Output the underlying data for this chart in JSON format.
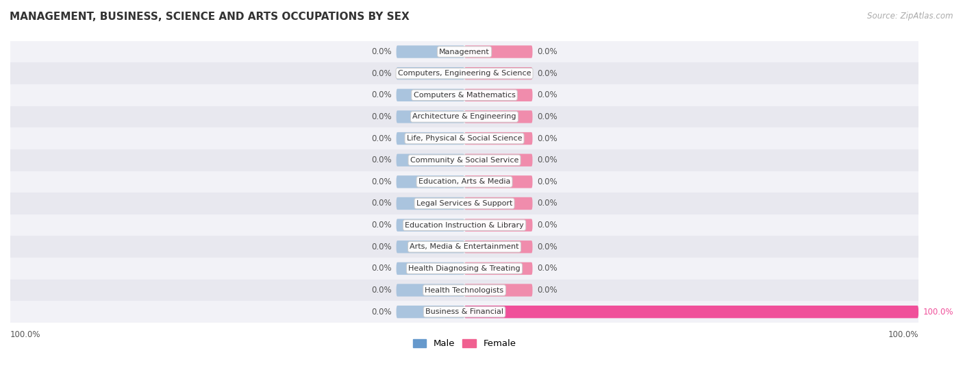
{
  "title": "MANAGEMENT, BUSINESS, SCIENCE AND ARTS OCCUPATIONS BY SEX",
  "source": "Source: ZipAtlas.com",
  "categories": [
    "Management",
    "Computers, Engineering & Science",
    "Computers & Mathematics",
    "Architecture & Engineering",
    "Life, Physical & Social Science",
    "Community & Social Service",
    "Education, Arts & Media",
    "Legal Services & Support",
    "Education Instruction & Library",
    "Arts, Media & Entertainment",
    "Health Diagnosing & Treating",
    "Health Technologists",
    "Business & Financial"
  ],
  "male_values": [
    0.0,
    0.0,
    0.0,
    0.0,
    0.0,
    0.0,
    0.0,
    0.0,
    0.0,
    0.0,
    0.0,
    0.0,
    0.0
  ],
  "female_values": [
    0.0,
    0.0,
    0.0,
    0.0,
    0.0,
    0.0,
    0.0,
    0.0,
    0.0,
    0.0,
    0.0,
    0.0,
    100.0
  ],
  "male_color": "#aac4de",
  "female_color": "#f08cac",
  "female_100_color": "#f0509a",
  "row_bg_light": "#f2f2f7",
  "row_bg_dark": "#e8e8ef",
  "background_fig": "#ffffff",
  "label_color": "#555555",
  "label_100_color": "#f0509a",
  "bar_height": 0.58,
  "stub_size": 15.0,
  "xlim": 100,
  "legend_male_color": "#6699cc",
  "legend_female_color": "#f06090",
  "title_fontsize": 11,
  "source_fontsize": 8.5,
  "label_fontsize": 8.5,
  "cat_fontsize": 8.0
}
